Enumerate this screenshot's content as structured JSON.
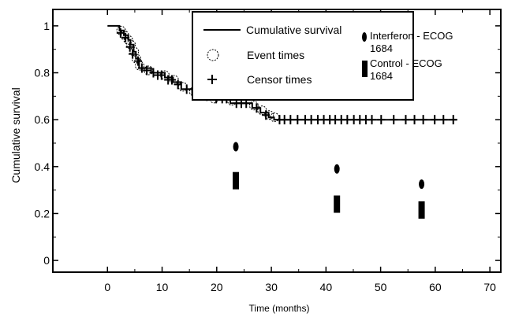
{
  "chart_data": {
    "type": "line",
    "title": "",
    "xlabel": "Time (months)",
    "ylabel": "Cumulative survival",
    "xlim": [
      -10,
      72
    ],
    "ylim": [
      -0.05,
      1.07
    ],
    "x_ticks": [
      0,
      10,
      20,
      30,
      40,
      50,
      60,
      70
    ],
    "y_ticks": [
      0,
      0.2,
      0.4,
      0.6,
      0.8,
      1
    ],
    "y_tick_labels": [
      "0",
      "0.2",
      "0.4",
      "0.6",
      "0.8",
      "1"
    ],
    "grid": false,
    "legend_position": "top-right",
    "legend": {
      "line": "Cumulative survival",
      "event": "Event times",
      "censor": "Censor times",
      "interferon": [
        "Interferon - ECOG",
        "1684"
      ],
      "control": [
        "Control - ECOG",
        "1684"
      ]
    },
    "series": [
      {
        "name": "Cumulative survival",
        "kind": "step",
        "points": [
          [
            0,
            1
          ],
          [
            2.2,
            1
          ],
          [
            2.2,
            0.98
          ],
          [
            3,
            0.98
          ],
          [
            3,
            0.96
          ],
          [
            3.8,
            0.96
          ],
          [
            3.8,
            0.94
          ],
          [
            4.2,
            0.94
          ],
          [
            4.2,
            0.92
          ],
          [
            4.8,
            0.92
          ],
          [
            4.8,
            0.89
          ],
          [
            5.2,
            0.89
          ],
          [
            5.2,
            0.86
          ],
          [
            5.8,
            0.86
          ],
          [
            5.8,
            0.82
          ],
          [
            8,
            0.82
          ],
          [
            8,
            0.8
          ],
          [
            10.5,
            0.8
          ],
          [
            10.5,
            0.78
          ],
          [
            12,
            0.78
          ],
          [
            12,
            0.76
          ],
          [
            13.5,
            0.76
          ],
          [
            13.5,
            0.73
          ],
          [
            15.5,
            0.73
          ],
          [
            15.5,
            0.71
          ],
          [
            19,
            0.71
          ],
          [
            19,
            0.69
          ],
          [
            22.5,
            0.69
          ],
          [
            22.5,
            0.67
          ],
          [
            26.5,
            0.67
          ],
          [
            26.5,
            0.65
          ],
          [
            28,
            0.65
          ],
          [
            28,
            0.63
          ],
          [
            29.5,
            0.63
          ],
          [
            29.5,
            0.61
          ],
          [
            30.5,
            0.61
          ],
          [
            30.5,
            0.6
          ],
          [
            64,
            0.6
          ]
        ]
      },
      {
        "name": "Event times",
        "kind": "circle",
        "points": [
          [
            2.5,
            0.98
          ],
          [
            3.1,
            0.96
          ],
          [
            3.8,
            0.94
          ],
          [
            4.3,
            0.92
          ],
          [
            4.9,
            0.89
          ],
          [
            5.3,
            0.86
          ],
          [
            5.9,
            0.83
          ],
          [
            7.5,
            0.81
          ],
          [
            10.5,
            0.79
          ],
          [
            12.2,
            0.77
          ],
          [
            13.8,
            0.74
          ],
          [
            15.8,
            0.72
          ],
          [
            17.2,
            0.71
          ],
          [
            19.5,
            0.69
          ],
          [
            22.8,
            0.68
          ],
          [
            26.8,
            0.66
          ],
          [
            28.3,
            0.64
          ],
          [
            29.6,
            0.62
          ],
          [
            30.6,
            0.61
          ]
        ]
      },
      {
        "name": "Censor times",
        "kind": "plus",
        "points": [
          [
            2.4,
            0.97
          ],
          [
            3.3,
            0.95
          ],
          [
            4.1,
            0.91
          ],
          [
            4.6,
            0.88
          ],
          [
            5.6,
            0.85
          ],
          [
            6.3,
            0.82
          ],
          [
            7.2,
            0.81
          ],
          [
            8.4,
            0.8
          ],
          [
            9.2,
            0.79
          ],
          [
            9.9,
            0.79
          ],
          [
            11.1,
            0.77
          ],
          [
            11.8,
            0.77
          ],
          [
            12.9,
            0.75
          ],
          [
            14.5,
            0.73
          ],
          [
            16.4,
            0.71
          ],
          [
            18.2,
            0.7
          ],
          [
            19.9,
            0.69
          ],
          [
            21,
            0.69
          ],
          [
            21.8,
            0.69
          ],
          [
            23.6,
            0.67
          ],
          [
            24.5,
            0.67
          ],
          [
            25.4,
            0.67
          ],
          [
            27.3,
            0.65
          ],
          [
            29,
            0.62
          ],
          [
            31.5,
            0.6
          ],
          [
            32.4,
            0.6
          ],
          [
            33.5,
            0.6
          ],
          [
            34.8,
            0.6
          ],
          [
            36.2,
            0.6
          ],
          [
            37.3,
            0.6
          ],
          [
            38.5,
            0.6
          ],
          [
            39.6,
            0.6
          ],
          [
            40.7,
            0.6
          ],
          [
            41.7,
            0.6
          ],
          [
            42.8,
            0.6
          ],
          [
            43.9,
            0.6
          ],
          [
            45.1,
            0.6
          ],
          [
            46.2,
            0.6
          ],
          [
            47.3,
            0.6
          ],
          [
            48.4,
            0.6
          ],
          [
            50.1,
            0.6
          ],
          [
            52.4,
            0.6
          ],
          [
            54.6,
            0.6
          ],
          [
            56.2,
            0.6
          ],
          [
            57.8,
            0.6
          ],
          [
            59.9,
            0.6
          ],
          [
            61.5,
            0.6
          ],
          [
            63.3,
            0.6
          ]
        ]
      },
      {
        "name": "Interferon - ECOG 1684",
        "kind": "marker",
        "points": [
          [
            23.5,
            0.485
          ],
          [
            42,
            0.39
          ],
          [
            57.5,
            0.325
          ]
        ]
      },
      {
        "name": "Control - ECOG 1684",
        "kind": "marker",
        "points": [
          [
            23.5,
            0.34
          ],
          [
            42,
            0.24
          ],
          [
            57.5,
            0.215
          ]
        ]
      }
    ]
  }
}
